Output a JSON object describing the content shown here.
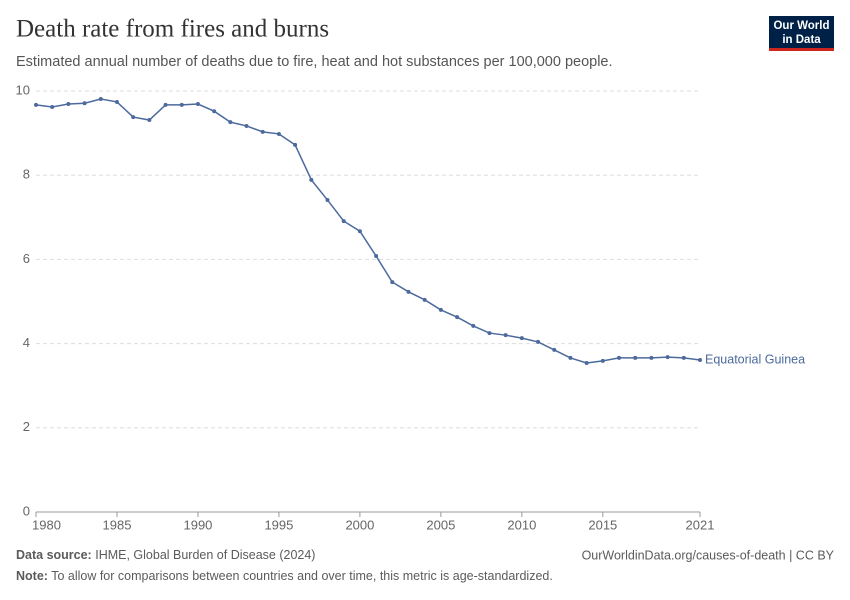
{
  "header": {
    "title": "Death rate from fires and burns",
    "subtitle": "Estimated annual number of deaths due to fire, heat and hot substances per 100,000 people."
  },
  "logo": {
    "lines": [
      "Our World",
      "in Data"
    ]
  },
  "chart_data": {
    "type": "line",
    "x": [
      1980,
      1981,
      1982,
      1983,
      1984,
      1985,
      1986,
      1987,
      1988,
      1989,
      1990,
      1991,
      1992,
      1993,
      1994,
      1995,
      1996,
      1997,
      1998,
      1999,
      2000,
      2001,
      2002,
      2003,
      2004,
      2005,
      2006,
      2007,
      2008,
      2009,
      2010,
      2011,
      2012,
      2013,
      2014,
      2015,
      2016,
      2017,
      2018,
      2019,
      2020,
      2021
    ],
    "series": [
      {
        "name": "Equatorial Guinea",
        "color": "#4c6a9c",
        "values": [
          9.67,
          9.62,
          9.69,
          9.71,
          9.81,
          9.74,
          9.38,
          9.31,
          9.67,
          9.67,
          9.69,
          9.52,
          9.26,
          9.17,
          9.03,
          8.98,
          8.72,
          7.89,
          7.41,
          6.91,
          6.67,
          6.08,
          5.46,
          5.23,
          5.04,
          4.8,
          4.63,
          4.42,
          4.25,
          4.2,
          4.13,
          4.04,
          3.85,
          3.66,
          3.54,
          3.59,
          3.66,
          3.66,
          3.66,
          3.68,
          3.66,
          3.61
        ]
      }
    ],
    "xlim": [
      1980,
      2021
    ],
    "xticks": [
      1980,
      1985,
      1990,
      1995,
      2000,
      2005,
      2010,
      2015,
      2021
    ],
    "ylim": [
      0,
      10
    ],
    "yticks": [
      0,
      2,
      4,
      6,
      8,
      10
    ],
    "grid": true
  },
  "footer": {
    "source_label": "Data source:",
    "source": "IHME, Global Burden of Disease (2024)",
    "url": "OurWorldinData.org/causes-of-death | CC BY",
    "note_label": "Note:",
    "note": "To allow for comparisons between countries and over time, this metric is age-standardized."
  }
}
